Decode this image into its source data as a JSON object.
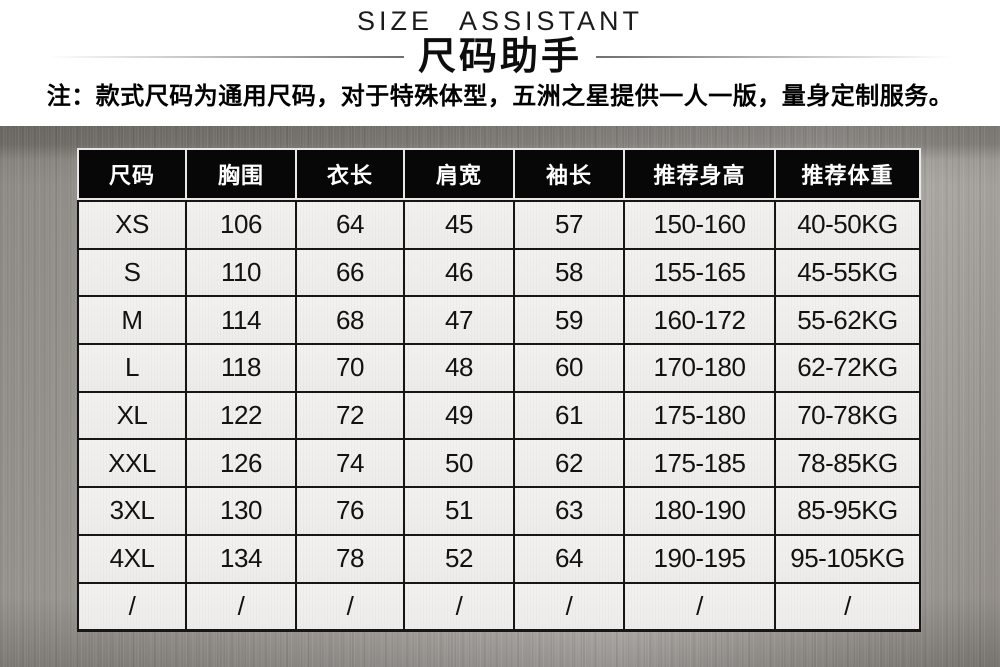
{
  "page": {
    "title_en": "SIZE ASSISTANT",
    "title_zh": "尺码助手",
    "note": "注：款式尺码为通用尺码，对于特殊体型，五洲之星提供一人一版，量身定制服务。"
  },
  "colors": {
    "header_bg": "#070707",
    "header_text": "#ffffff",
    "cell_bg": "#f1f0ee",
    "body_grid_line": "#161616",
    "header_grid_line": "#e9e8e6",
    "metal_base": "#a5a19d",
    "divider_line": "#6f6f6f",
    "note_text": "#000000"
  },
  "table": {
    "headers": [
      "尺码",
      "胸围",
      "衣长",
      "肩宽",
      "袖长",
      "推荐身高",
      "推荐体重"
    ],
    "rows": [
      [
        "XS",
        "106",
        "64",
        "45",
        "57",
        "150-160",
        "40-50KG"
      ],
      [
        "S",
        "110",
        "66",
        "46",
        "58",
        "155-165",
        "45-55KG"
      ],
      [
        "M",
        "114",
        "68",
        "47",
        "59",
        "160-172",
        "55-62KG"
      ],
      [
        "L",
        "118",
        "70",
        "48",
        "60",
        "170-180",
        "62-72KG"
      ],
      [
        "XL",
        "122",
        "72",
        "49",
        "61",
        "175-180",
        "70-78KG"
      ],
      [
        "XXL",
        "126",
        "74",
        "50",
        "62",
        "175-185",
        "78-85KG"
      ],
      [
        "3XL",
        "130",
        "76",
        "51",
        "63",
        "180-190",
        "85-95KG"
      ],
      [
        "4XL",
        "134",
        "78",
        "52",
        "64",
        "190-195",
        "95-105KG"
      ],
      [
        "/",
        "/",
        "/",
        "/",
        "/",
        "/",
        "/"
      ]
    ]
  },
  "chart_data": {
    "type": "table",
    "title": "尺码助手 (SIZE ASSISTANT)",
    "subtitle": "注：款式尺码为通用尺码，对于特殊体型，五洲之星提供一人一版，量身定制服务。",
    "columns": [
      "尺码",
      "胸围",
      "衣长",
      "肩宽",
      "袖长",
      "推荐身高",
      "推荐体重"
    ],
    "rows": [
      [
        "XS",
        106,
        64,
        45,
        57,
        "150-160",
        "40-50KG"
      ],
      [
        "S",
        110,
        66,
        46,
        58,
        "155-165",
        "45-55KG"
      ],
      [
        "M",
        114,
        68,
        47,
        59,
        "160-172",
        "55-62KG"
      ],
      [
        "L",
        118,
        70,
        48,
        60,
        "170-180",
        "62-72KG"
      ],
      [
        "XL",
        122,
        72,
        49,
        61,
        "175-180",
        "70-78KG"
      ],
      [
        "XXL",
        126,
        74,
        50,
        62,
        "175-185",
        "78-85KG"
      ],
      [
        "3XL",
        130,
        76,
        51,
        63,
        "180-190",
        "85-95KG"
      ],
      [
        "4XL",
        134,
        78,
        52,
        64,
        "190-195",
        "95-105KG"
      ],
      [
        "/",
        "/",
        "/",
        "/",
        "/",
        "/",
        "/"
      ]
    ]
  }
}
